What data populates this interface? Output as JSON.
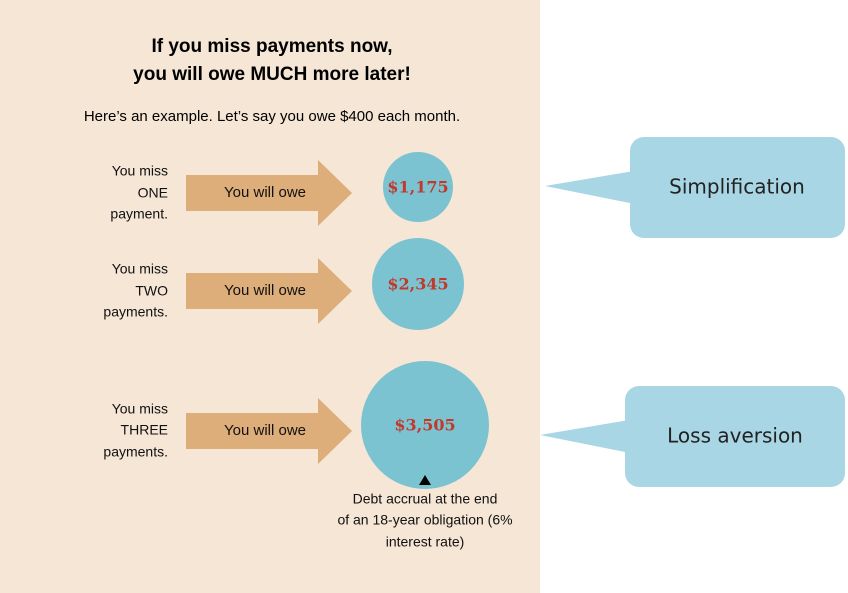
{
  "header": {
    "title_lines": [
      "If you miss payments now,",
      "you will owe MUCH more later!"
    ],
    "intro": "Here’s an example. Let’s say you owe $400 each month."
  },
  "rows": [
    {
      "label_lines": [
        "You miss",
        "ONE",
        "payment."
      ],
      "arrow": "You will owe",
      "amount": "$1,175"
    },
    {
      "label_lines": [
        "You miss",
        "TWO",
        "payments."
      ],
      "arrow": "You will owe",
      "amount": "$2,345"
    },
    {
      "label_lines": [
        "You miss",
        "THREE",
        "payments."
      ],
      "arrow": "You will owe",
      "amount": "$3,505"
    }
  ],
  "note_lines": [
    "Debt accrual at the end",
    "of an 18-year obligation (6%",
    "interest rate)"
  ],
  "callouts": [
    "Simplification",
    "Loss aversion"
  ]
}
